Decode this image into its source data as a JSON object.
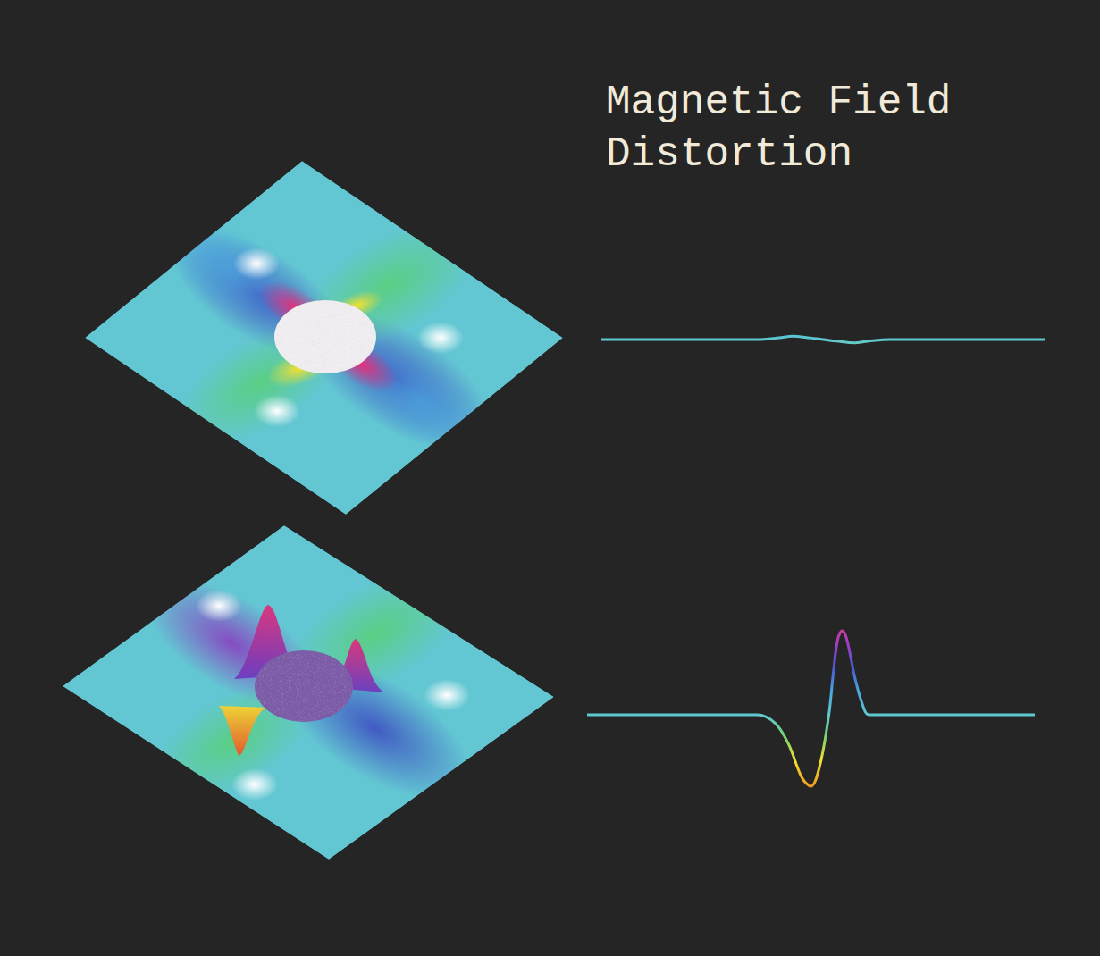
{
  "title": "Magnetic Field Distortion",
  "chart_data": [
    {
      "type": "line",
      "tick_labels": false,
      "x": [
        0,
        20,
        35,
        40,
        43,
        47,
        50,
        53,
        57,
        60,
        65,
        80,
        100
      ],
      "values": [
        0,
        0,
        0,
        0.02,
        0.04,
        0.02,
        0,
        -0.02,
        -0.04,
        -0.02,
        0,
        0,
        0
      ],
      "xlim": [
        0,
        100
      ],
      "ylim": [
        -1.1,
        1.1
      ]
    },
    {
      "type": "line",
      "tick_labels": false,
      "x": [
        0,
        10,
        20,
        30,
        38,
        42,
        45,
        48,
        50,
        52,
        54,
        55,
        56,
        57,
        58,
        60,
        62,
        63,
        65,
        70,
        80,
        90,
        100
      ],
      "values": [
        0,
        0,
        0,
        0,
        0,
        -0.1,
        -0.35,
        -0.75,
        -0.85,
        -0.6,
        0,
        0.5,
        0.9,
        1.0,
        0.9,
        0.4,
        0.05,
        0,
        0,
        0,
        0,
        0,
        0
      ],
      "xlim": [
        0,
        100
      ],
      "ylim": [
        -1.1,
        1.1
      ]
    }
  ]
}
